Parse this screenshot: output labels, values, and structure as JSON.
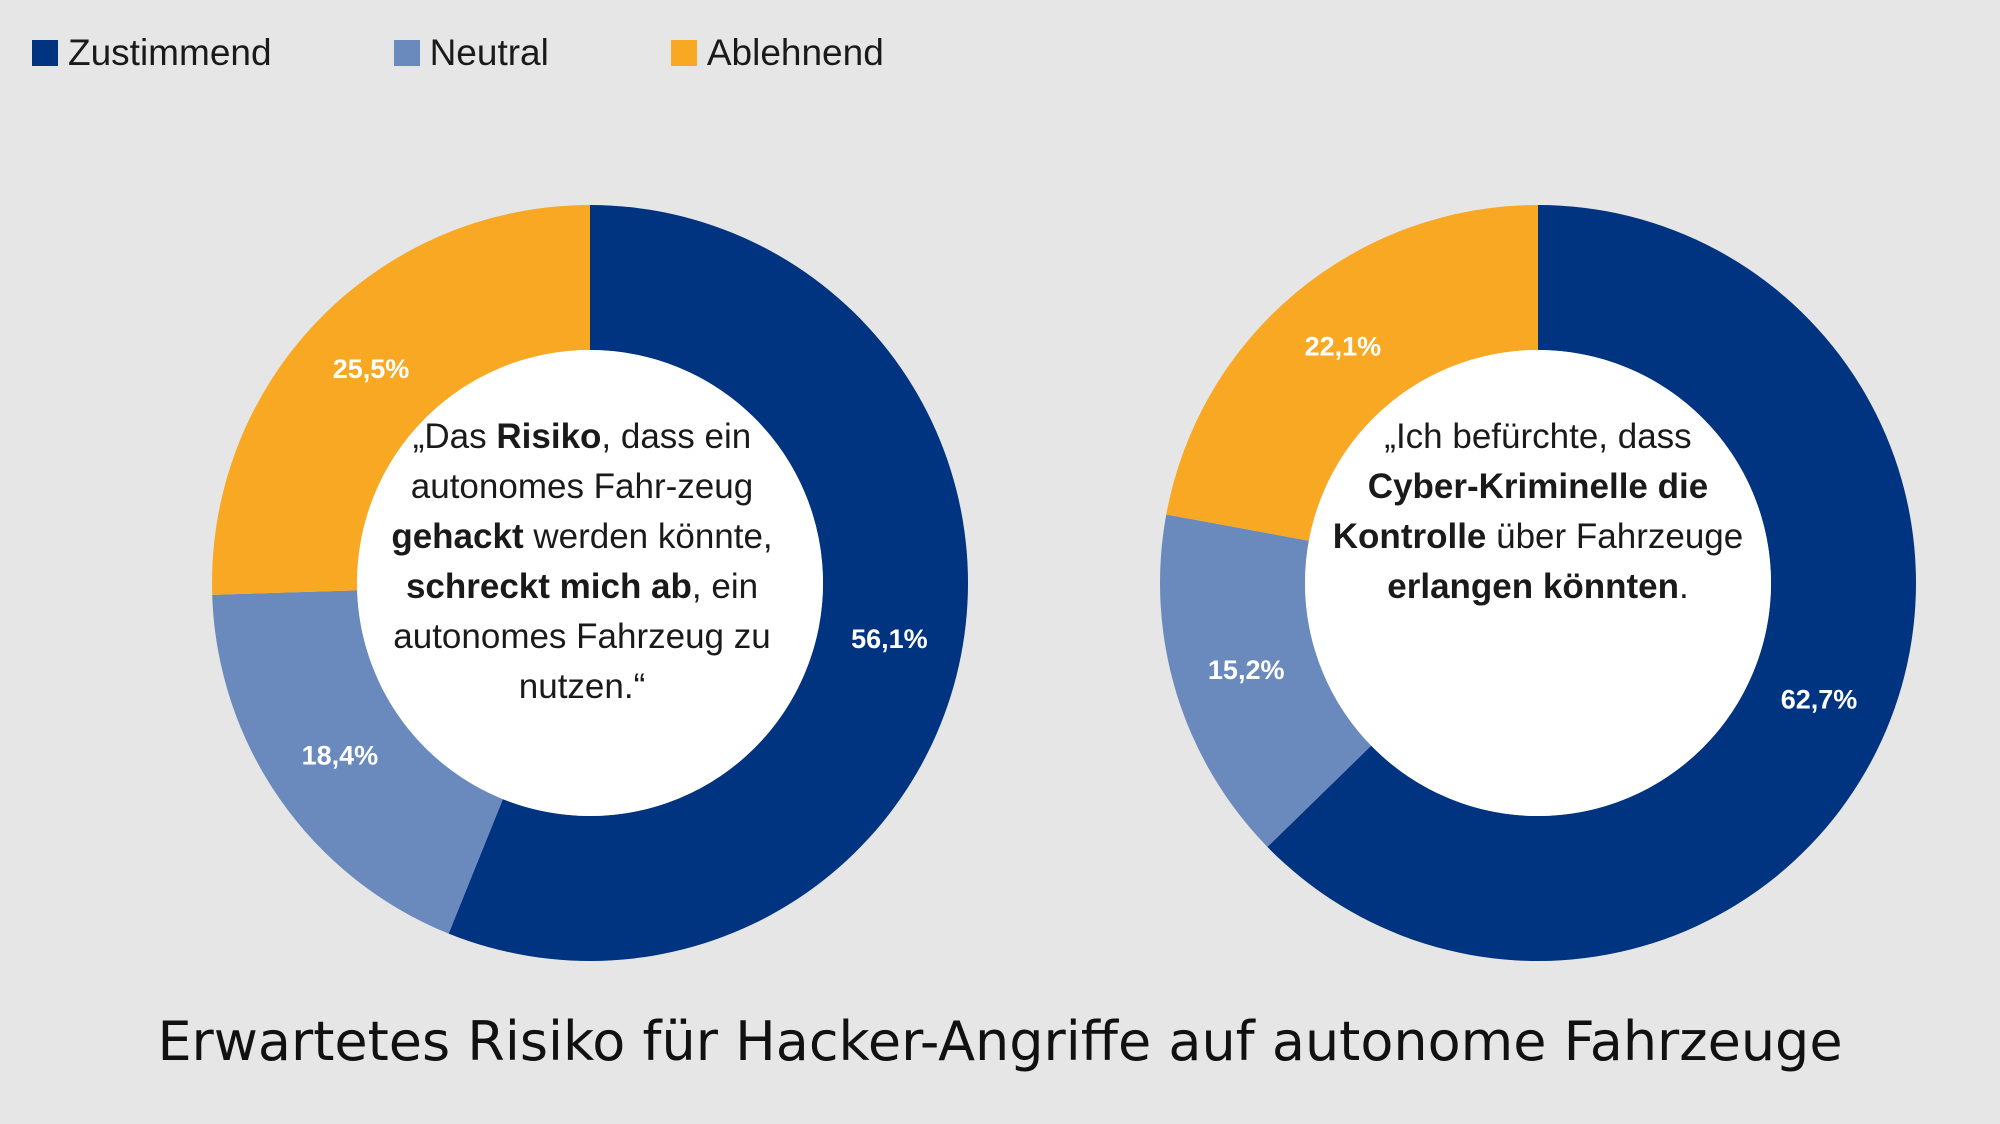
{
  "legend": [
    {
      "label": "Zustimmend",
      "color": "#003380"
    },
    {
      "label": "Neutral",
      "color": "#6a89bd"
    },
    {
      "label": "Ablehnend",
      "color": "#f9a824"
    }
  ],
  "chart_data": [
    {
      "type": "pie",
      "subtype": "donut",
      "categories": [
        "Zustimmend",
        "Neutral",
        "Ablehnend"
      ],
      "values": [
        56.1,
        18.4,
        25.5
      ],
      "data_labels": [
        "56,1%",
        "18,4%",
        "25,5%"
      ],
      "colors": [
        "#003380",
        "#6a89bd",
        "#f9a824"
      ],
      "center_text": [
        {
          "text": "„Das ",
          "bold": false
        },
        {
          "text": "Risiko",
          "bold": true
        },
        {
          "text": ", dass ein autonomes Fahr-zeug ",
          "bold": false
        },
        {
          "text": "gehackt",
          "bold": true
        },
        {
          "text": " werden könnte, ",
          "bold": false
        },
        {
          "text": "schreckt mich ab",
          "bold": true
        },
        {
          "text": ", ein autonomes Fahrzeug zu nutzen.“",
          "bold": false
        }
      ]
    },
    {
      "type": "pie",
      "subtype": "donut",
      "categories": [
        "Zustimmend",
        "Neutral",
        "Ablehnend"
      ],
      "values": [
        62.7,
        15.2,
        22.1
      ],
      "data_labels": [
        "62,7%",
        "15,2%",
        "22,1%"
      ],
      "colors": [
        "#003380",
        "#6a89bd",
        "#f9a824"
      ],
      "center_text": [
        {
          "text": "„Ich befürchte, dass ",
          "bold": false
        },
        {
          "text": "Cyber-Kriminelle die Kontrolle",
          "bold": true
        },
        {
          "text": " über Fahrzeuge ",
          "bold": false
        },
        {
          "text": "erlangen könnten",
          "bold": true
        },
        {
          "text": ".",
          "bold": false
        }
      ]
    }
  ],
  "title": "Erwartetes Risiko für Hacker-Angriffe auf autonome Fahrzeuge"
}
